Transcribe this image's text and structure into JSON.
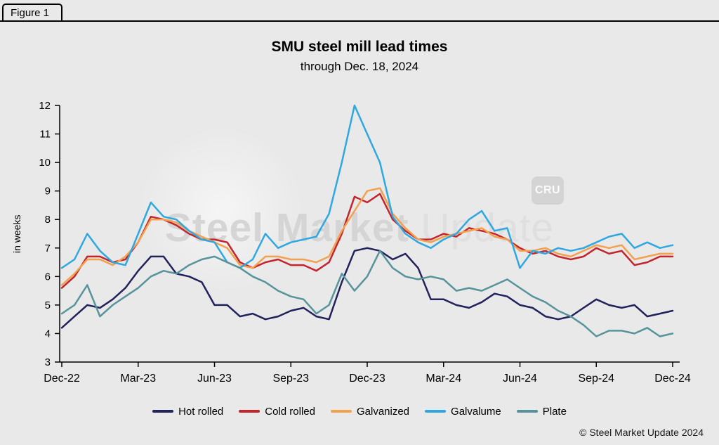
{
  "figure_label": "Figure 1",
  "watermark": {
    "text_primary": "Steel Market",
    "text_secondary": " Update",
    "badge": "CRU"
  },
  "footer_copyright": "© Steel Market Update 2024",
  "colors": {
    "background": "#e9e9e9",
    "axis": "#000000"
  },
  "chart_data": {
    "type": "line",
    "title": "SMU steel mill lead times",
    "subtitle": "through Dec. 18, 2024",
    "xlabel": "",
    "ylabel": "in weeks",
    "ylim": [
      3,
      12
    ],
    "y_ticks": [
      3,
      4,
      5,
      6,
      7,
      8,
      9,
      10,
      11,
      12
    ],
    "grid": false,
    "legend_position": "bottom",
    "x_unit": "months since Dec-22, biweekly observations",
    "x_step_months": 0.5,
    "x_months_max": 24,
    "x_ticks": [
      {
        "m": 0,
        "label": "Dec-22"
      },
      {
        "m": 3,
        "label": "Mar-23"
      },
      {
        "m": 6,
        "label": "Jun-23"
      },
      {
        "m": 9,
        "label": "Sep-23"
      },
      {
        "m": 12,
        "label": "Dec-23"
      },
      {
        "m": 15,
        "label": "Mar-24"
      },
      {
        "m": 18,
        "label": "Jun-24"
      },
      {
        "m": 21,
        "label": "Sep-24"
      },
      {
        "m": 24,
        "label": "Dec-24"
      }
    ],
    "series": [
      {
        "name": "Hot rolled",
        "color": "#21215c",
        "values": [
          4.2,
          4.6,
          5.0,
          4.9,
          5.2,
          5.6,
          6.2,
          6.7,
          6.7,
          6.1,
          6.0,
          5.8,
          5.0,
          5.0,
          4.6,
          4.7,
          4.5,
          4.6,
          4.8,
          4.9,
          4.6,
          4.5,
          5.8,
          6.9,
          7.0,
          6.9,
          6.6,
          6.8,
          6.3,
          5.2,
          5.2,
          5.0,
          4.9,
          5.1,
          5.4,
          5.3,
          5.0,
          4.9,
          4.6,
          4.5,
          4.6,
          4.9,
          5.2,
          5.0,
          4.9,
          5.0,
          4.6,
          4.7,
          4.8
        ]
      },
      {
        "name": "Cold rolled",
        "color": "#c4242b",
        "values": [
          5.6,
          6.0,
          6.7,
          6.7,
          6.5,
          6.6,
          7.2,
          8.1,
          8.0,
          7.8,
          7.5,
          7.3,
          7.3,
          7.2,
          6.5,
          6.3,
          6.5,
          6.6,
          6.4,
          6.4,
          6.2,
          6.5,
          7.5,
          8.8,
          8.6,
          8.9,
          8.0,
          7.6,
          7.3,
          7.3,
          7.5,
          7.4,
          7.7,
          7.6,
          7.5,
          7.3,
          7.0,
          6.8,
          6.9,
          6.7,
          6.6,
          6.7,
          7.0,
          6.8,
          6.9,
          6.4,
          6.5,
          6.7,
          6.7
        ]
      },
      {
        "name": "Galvanized",
        "color": "#f2a14f",
        "values": [
          5.7,
          6.1,
          6.6,
          6.6,
          6.4,
          6.7,
          7.2,
          8.0,
          8.0,
          7.9,
          7.6,
          7.4,
          7.2,
          7.0,
          6.4,
          6.3,
          6.7,
          6.7,
          6.6,
          6.6,
          6.5,
          6.7,
          7.6,
          8.3,
          9.0,
          9.1,
          8.2,
          7.7,
          7.3,
          7.2,
          7.4,
          7.5,
          7.6,
          7.7,
          7.4,
          7.3,
          6.9,
          6.9,
          7.0,
          6.8,
          6.7,
          6.9,
          7.1,
          7.0,
          7.1,
          6.6,
          6.7,
          6.8,
          6.8
        ]
      },
      {
        "name": "Galvalume",
        "color": "#2fa8e1",
        "values": [
          6.3,
          6.6,
          7.5,
          6.9,
          6.5,
          6.4,
          7.5,
          8.6,
          8.1,
          8.0,
          7.6,
          7.3,
          7.2,
          6.5,
          6.3,
          6.6,
          7.5,
          7.0,
          7.2,
          7.3,
          7.4,
          8.2,
          10.0,
          12.0,
          11.0,
          10.0,
          8.1,
          7.5,
          7.2,
          7.0,
          7.3,
          7.5,
          8.0,
          8.3,
          7.6,
          7.7,
          6.3,
          6.9,
          6.8,
          7.0,
          6.9,
          7.0,
          7.2,
          7.4,
          7.5,
          7.0,
          7.2,
          7.0,
          7.1
        ]
      },
      {
        "name": "Plate",
        "color": "#57939b",
        "values": [
          4.7,
          5.0,
          5.7,
          4.6,
          5.0,
          5.3,
          5.6,
          6.0,
          6.2,
          6.1,
          6.4,
          6.6,
          6.7,
          6.5,
          6.3,
          6.0,
          5.8,
          5.5,
          5.3,
          5.2,
          4.7,
          5.0,
          6.1,
          5.5,
          6.0,
          6.9,
          6.3,
          6.0,
          5.9,
          6.0,
          5.9,
          5.5,
          5.6,
          5.5,
          5.7,
          5.9,
          5.6,
          5.3,
          5.1,
          4.8,
          4.6,
          4.3,
          3.9,
          4.1,
          4.1,
          4.0,
          4.2,
          3.9,
          4.0
        ]
      }
    ]
  }
}
